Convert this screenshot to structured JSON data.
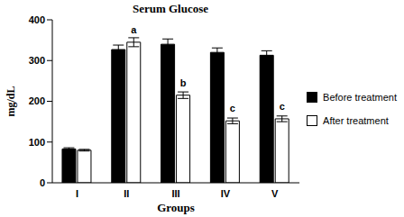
{
  "chart_data": {
    "type": "bar",
    "title": "Serum Glucose",
    "x_label": "Groups",
    "y_label": "mg/dL",
    "categories": [
      "I",
      "II",
      "III",
      "IV",
      "V"
    ],
    "series": [
      {
        "name": "Before treatment",
        "color": "#000000",
        "values": [
          83,
          327,
          340,
          320,
          313
        ],
        "errors": [
          3,
          11,
          13,
          11,
          11
        ],
        "annotations": [
          null,
          null,
          null,
          null,
          null
        ]
      },
      {
        "name": "After treatment",
        "color": "#ffffff",
        "values": [
          80,
          345,
          215,
          152,
          157
        ],
        "errors": [
          2,
          11,
          8,
          7,
          7
        ],
        "annotations": [
          null,
          "a",
          "b",
          "c",
          "c"
        ]
      }
    ],
    "ylim": [
      0,
      400
    ],
    "yticks": [
      0,
      100,
      200,
      300,
      400
    ],
    "grid": false,
    "legend": "right"
  }
}
